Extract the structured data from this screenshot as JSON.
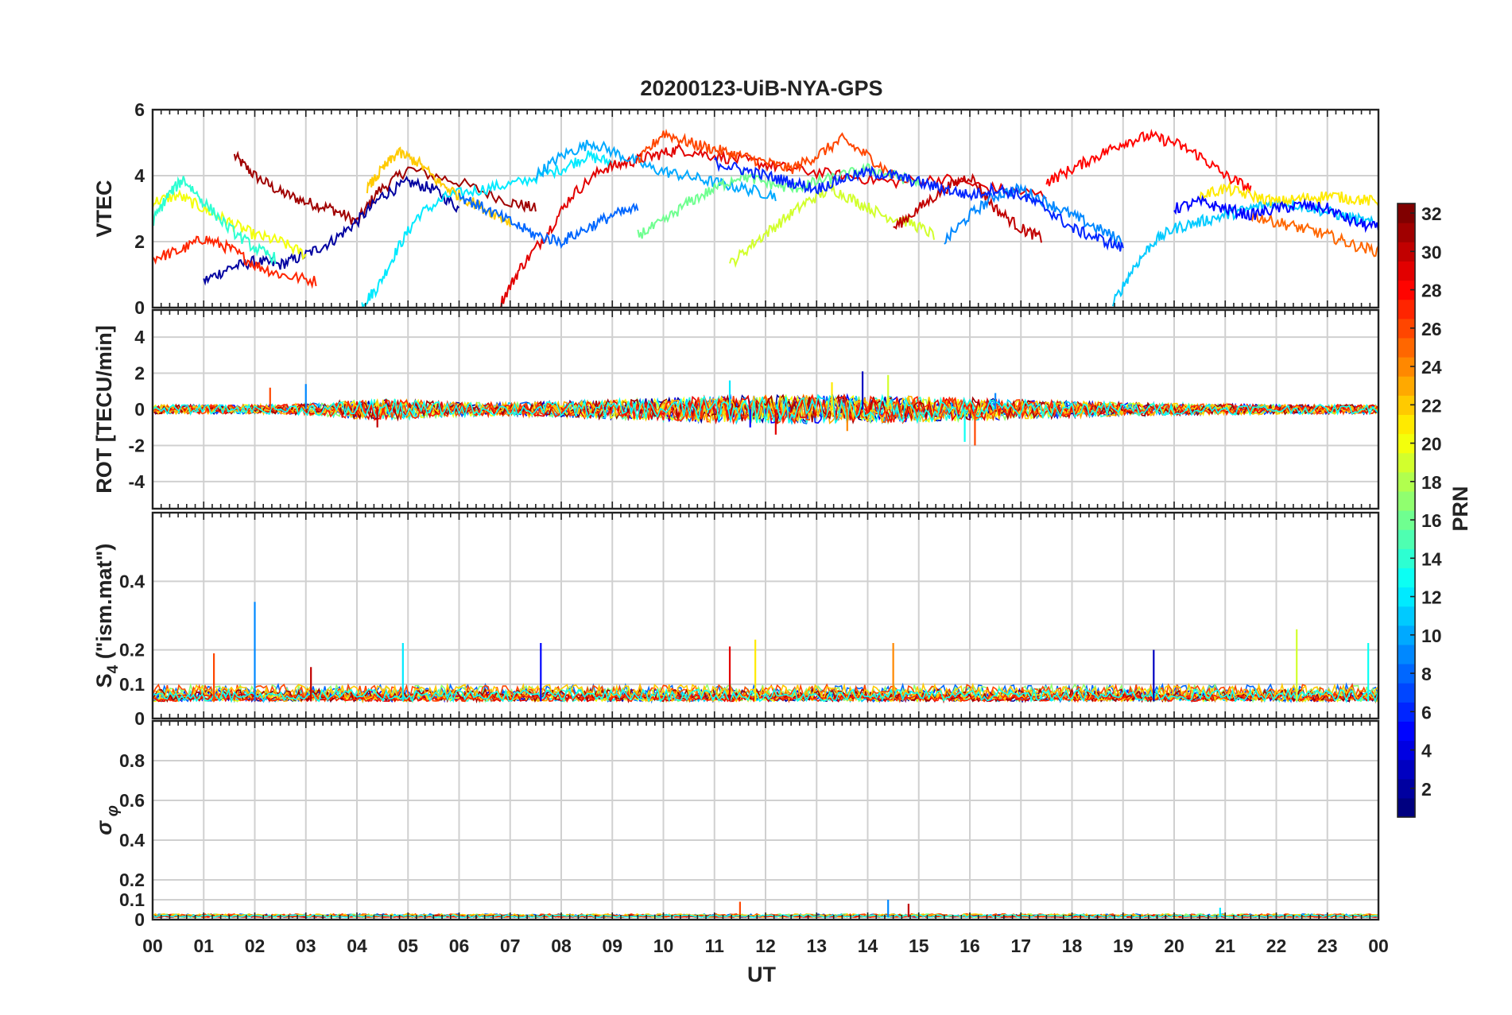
{
  "figure": {
    "title": "20200123-UiB-NYA-GPS",
    "xlabel": "UT",
    "xticks": [
      "00",
      "01",
      "02",
      "03",
      "04",
      "05",
      "06",
      "07",
      "08",
      "09",
      "10",
      "11",
      "12",
      "13",
      "14",
      "15",
      "16",
      "17",
      "18",
      "19",
      "20",
      "21",
      "22",
      "23",
      "00"
    ]
  },
  "colorbar": {
    "label": "PRN",
    "range": [
      1,
      32
    ],
    "ticks": [
      "2",
      "4",
      "6",
      "8",
      "10",
      "12",
      "14",
      "16",
      "18",
      "20",
      "22",
      "24",
      "26",
      "28",
      "30",
      "32"
    ],
    "colormap": "jet"
  },
  "chart_data": [
    {
      "type": "line",
      "panel": "vtec",
      "title": "20200123-UiB-NYA-GPS",
      "ylabel": "VTEC",
      "ylim": [
        0,
        6
      ],
      "yticks": [
        "0",
        "2",
        "4",
        "6"
      ],
      "xlim": [
        0,
        24
      ],
      "grid": true,
      "series": [
        {
          "prn": 31,
          "x": [
            1.6,
            2.0,
            2.5,
            3.0,
            3.5,
            4.0,
            4.4,
            5.0,
            6.0,
            7.0,
            7.5
          ],
          "y": [
            4.6,
            4.0,
            3.5,
            3.2,
            3.0,
            2.6,
            3.5,
            4.2,
            3.8,
            3.2,
            3.0
          ]
        },
        {
          "prn": 2,
          "x": [
            1.0,
            1.5,
            2.0,
            2.5,
            3.0,
            3.5,
            4.0,
            4.5,
            5.0,
            5.5,
            6.0
          ],
          "y": [
            0.8,
            1.2,
            1.4,
            1.3,
            1.6,
            2.0,
            2.6,
            3.4,
            3.8,
            3.6,
            3.0
          ]
        },
        {
          "prn": 12,
          "x": [
            4.1,
            4.4,
            4.8,
            5.2,
            5.8,
            6.5,
            7.2,
            8.0,
            8.5,
            9.0
          ],
          "y": [
            0.1,
            0.6,
            1.8,
            2.8,
            3.4,
            3.6,
            3.8,
            4.2,
            4.6,
            4.4
          ]
        },
        {
          "prn": 20,
          "x": [
            0.0,
            0.5,
            1.0,
            1.5,
            2.0,
            2.5,
            3.0
          ],
          "y": [
            3.2,
            3.4,
            3.0,
            2.6,
            2.2,
            2.0,
            1.6
          ]
        },
        {
          "prn": 27,
          "x": [
            0.0,
            0.5,
            1.0,
            1.5,
            2.0,
            2.5,
            3.2
          ],
          "y": [
            1.5,
            1.7,
            2.1,
            1.8,
            1.3,
            1.0,
            0.8
          ]
        },
        {
          "prn": 29,
          "x": [
            6.8,
            7.2,
            7.7,
            8.2,
            8.8,
            9.3,
            9.8,
            10.3,
            11.0,
            11.8,
            12.5,
            13.5,
            14.5,
            15.5,
            16.5,
            17.5
          ],
          "y": [
            0.1,
            1.2,
            2.2,
            3.4,
            4.2,
            4.4,
            4.6,
            4.8,
            4.6,
            4.4,
            4.2,
            4.0,
            3.8,
            3.9,
            3.6,
            3.4
          ]
        },
        {
          "prn": 10,
          "x": [
            7.5,
            8.0,
            8.6,
            9.2,
            9.8,
            10.4,
            11.0,
            11.6,
            12.2
          ],
          "y": [
            4.0,
            4.6,
            5.0,
            4.6,
            4.2,
            4.0,
            3.8,
            3.6,
            3.4
          ]
        },
        {
          "prn": 19,
          "x": [
            11.3,
            11.8,
            12.3,
            12.8,
            13.3,
            13.8,
            14.3,
            14.8,
            15.3
          ],
          "y": [
            1.3,
            2.0,
            2.6,
            3.2,
            3.6,
            3.2,
            2.8,
            2.6,
            2.2
          ]
        },
        {
          "prn": 26,
          "x": [
            9.5,
            10.0,
            10.5,
            11.0,
            11.5,
            12.0,
            12.5,
            13.0,
            13.5,
            14.0,
            14.5
          ],
          "y": [
            4.4,
            5.3,
            5.0,
            4.8,
            4.6,
            4.4,
            4.2,
            4.6,
            5.1,
            4.6,
            4.0
          ]
        },
        {
          "prn": 30,
          "x": [
            14.5,
            15.0,
            15.5,
            16.0,
            16.5,
            17.0,
            17.4
          ],
          "y": [
            2.4,
            3.0,
            3.6,
            4.0,
            3.0,
            2.4,
            2.1
          ]
        },
        {
          "prn": 9,
          "x": [
            15.5,
            16.0,
            16.5,
            17.0,
            17.5,
            18.0,
            18.5,
            19.0
          ],
          "y": [
            2.0,
            2.8,
            3.4,
            3.6,
            3.2,
            2.8,
            2.4,
            2.0
          ]
        },
        {
          "prn": 28,
          "x": [
            17.5,
            18.0,
            18.5,
            19.0,
            19.5,
            20.0,
            20.5,
            21.0,
            21.5
          ],
          "y": [
            3.8,
            4.2,
            4.6,
            5.0,
            5.2,
            5.0,
            4.6,
            4.0,
            3.6
          ]
        },
        {
          "prn": 11,
          "x": [
            18.8,
            19.2,
            19.6,
            20.0,
            20.5,
            21.0,
            21.5,
            22.0,
            22.5,
            23.0,
            23.5,
            24.0
          ],
          "y": [
            0.1,
            1.2,
            2.0,
            2.4,
            2.6,
            2.8,
            3.0,
            3.2,
            3.1,
            2.9,
            2.7,
            2.5
          ]
        },
        {
          "prn": 25,
          "x": [
            21.5,
            22.0,
            22.5,
            23.0,
            23.5,
            24.0
          ],
          "y": [
            2.8,
            2.6,
            2.4,
            2.2,
            1.9,
            1.7
          ]
        },
        {
          "prn": 21,
          "x": [
            20.5,
            21.0,
            21.5,
            22.0,
            22.5,
            23.0,
            23.5,
            24.0
          ],
          "y": [
            3.4,
            3.6,
            3.4,
            3.2,
            3.3,
            3.4,
            3.3,
            3.2
          ]
        },
        {
          "prn": 5,
          "x": [
            20.0,
            20.5,
            21.0,
            21.5,
            22.0,
            22.5,
            23.0,
            23.5,
            24.0
          ],
          "y": [
            3.0,
            3.2,
            3.0,
            2.8,
            3.0,
            3.1,
            3.0,
            2.6,
            2.4
          ]
        },
        {
          "prn": 16,
          "x": [
            9.5,
            10.0,
            10.5,
            11.0,
            11.5,
            12.0,
            12.5,
            13.0,
            13.5,
            14.0,
            14.5,
            15.0
          ],
          "y": [
            2.2,
            2.6,
            3.2,
            3.6,
            4.0,
            3.8,
            3.6,
            3.8,
            4.0,
            4.2,
            4.0,
            3.8
          ]
        },
        {
          "prn": 14,
          "x": [
            0.0,
            0.3,
            0.6,
            1.0,
            1.5,
            2.0,
            2.4
          ],
          "y": [
            2.6,
            3.4,
            3.9,
            3.2,
            2.4,
            1.8,
            1.5
          ]
        },
        {
          "prn": 22,
          "x": [
            4.2,
            4.5,
            4.8,
            5.2,
            5.6,
            6.0,
            6.5,
            7.0
          ],
          "y": [
            3.6,
            4.2,
            4.7,
            4.4,
            3.8,
            3.4,
            3.0,
            2.6
          ]
        },
        {
          "prn": 8,
          "x": [
            6.0,
            6.5,
            7.0,
            7.5,
            8.0,
            8.5,
            9.0,
            9.5
          ],
          "y": [
            3.4,
            3.0,
            2.6,
            2.2,
            2.0,
            2.4,
            2.8,
            3.0
          ]
        },
        {
          "prn": 6,
          "x": [
            11.0,
            11.5,
            12.0,
            12.5,
            13.0,
            13.5,
            14.0,
            14.5,
            15.0,
            15.5,
            16.0,
            16.5,
            17.0,
            17.5,
            18.0,
            18.5,
            19.0
          ],
          "y": [
            4.4,
            4.2,
            4.0,
            3.8,
            3.6,
            3.9,
            4.1,
            4.0,
            3.8,
            3.6,
            3.4,
            3.6,
            3.4,
            3.0,
            2.4,
            2.1,
            1.8
          ]
        }
      ]
    },
    {
      "type": "line",
      "panel": "rot",
      "ylabel": "ROT [TECU/min]",
      "ylim": [
        -5.5,
        5.5
      ],
      "yticks": [
        "-4",
        "-2",
        "0",
        "2",
        "4"
      ],
      "xlim": [
        0,
        24
      ],
      "grid": true,
      "note_free": "noise around 0",
      "spikes": [
        {
          "x": 2.3,
          "y": 1.2
        },
        {
          "x": 3.0,
          "y": 1.4
        },
        {
          "x": 4.4,
          "y": -1.0
        },
        {
          "x": 11.3,
          "y": 1.6
        },
        {
          "x": 11.7,
          "y": -1.0
        },
        {
          "x": 12.2,
          "y": -1.4
        },
        {
          "x": 13.3,
          "y": 1.5
        },
        {
          "x": 13.6,
          "y": -1.2
        },
        {
          "x": 13.9,
          "y": 2.1
        },
        {
          "x": 14.4,
          "y": 1.9
        },
        {
          "x": 15.9,
          "y": -1.8
        },
        {
          "x": 16.1,
          "y": -2.0
        },
        {
          "x": 16.5,
          "y": 0.9
        }
      ]
    },
    {
      "type": "line",
      "panel": "s4",
      "ylabel": "S4 (\"ism.mat\")",
      "ylim": [
        0,
        0.6
      ],
      "yticks": [
        "0",
        "0.1",
        "0.2",
        "0.4"
      ],
      "xlim": [
        0,
        24
      ],
      "grid": true,
      "spikes": [
        {
          "x": 1.2,
          "y": 0.19
        },
        {
          "x": 2.0,
          "y": 0.34
        },
        {
          "x": 3.1,
          "y": 0.15
        },
        {
          "x": 4.9,
          "y": 0.22
        },
        {
          "x": 7.6,
          "y": 0.22
        },
        {
          "x": 11.3,
          "y": 0.21
        },
        {
          "x": 11.8,
          "y": 0.23
        },
        {
          "x": 14.5,
          "y": 0.22
        },
        {
          "x": 19.6,
          "y": 0.2
        },
        {
          "x": 22.4,
          "y": 0.26
        },
        {
          "x": 23.8,
          "y": 0.22
        }
      ]
    },
    {
      "type": "line",
      "panel": "sigma_phi",
      "ylabel": "σ φ",
      "ylim": [
        0,
        1.0
      ],
      "yticks": [
        "0",
        "0.1",
        "0.2",
        "0.4",
        "0.6",
        "0.8"
      ],
      "xlim": [
        0,
        24
      ],
      "grid": true,
      "spikes": [
        {
          "x": 11.5,
          "y": 0.09
        },
        {
          "x": 14.4,
          "y": 0.1
        },
        {
          "x": 14.8,
          "y": 0.08
        },
        {
          "x": 20.9,
          "y": 0.06
        }
      ]
    }
  ]
}
